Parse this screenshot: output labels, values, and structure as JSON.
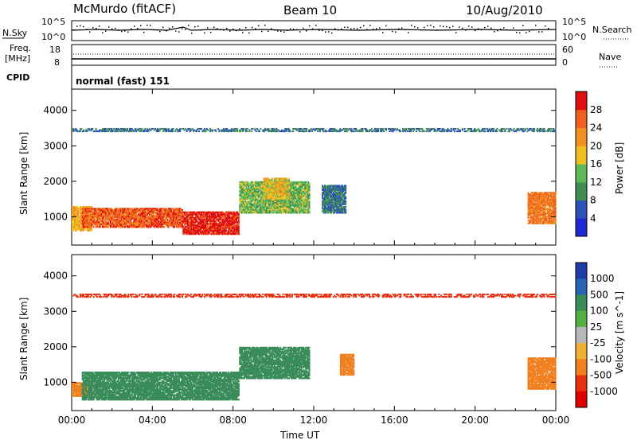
{
  "header": {
    "title": "McMurdo (fitACF)",
    "beam": "Beam 10",
    "date": "10/Aug/2010"
  },
  "top_panels": {
    "nsky_label": "N.Sky",
    "nsky_scale": [
      "10^5",
      "10^0"
    ],
    "nsearch_label": "N.Search",
    "nsearch_scale": [
      "10^5",
      "10^0"
    ],
    "freq_label": "Freq.",
    "freq_unit": "[MHz]",
    "freq_ticks": [
      "18",
      "8"
    ],
    "nave_label": "Nave",
    "nave_ticks": [
      "60",
      "0"
    ],
    "cpid_label": "CPID",
    "cpid_value": "normal (fast) 151"
  },
  "colors": {
    "power_scale": [
      "#1e28d2",
      "#2c52b8",
      "#3e8f50",
      "#5fb85a",
      "#f0c020",
      "#f09020",
      "#f06020",
      "#e01010"
    ],
    "velocity_scale": [
      "#1e3ca8",
      "#2a64b8",
      "#3a8c5a",
      "#56b040",
      "#b8b8b8",
      "#f0b030",
      "#f08020",
      "#e83010",
      "#e00000"
    ]
  },
  "chart_data": [
    {
      "type": "heatmap",
      "name": "power",
      "ylabel": "Slant Range [km]",
      "xlabel": "Time UT",
      "xticks": [
        "00:00",
        "04:00",
        "08:00",
        "12:00",
        "16:00",
        "20:00",
        "00:00"
      ],
      "yticks": [
        "1000",
        "2000",
        "3000",
        "4000"
      ],
      "ylim": [
        200,
        4600
      ],
      "xlim_hours": [
        0,
        24
      ],
      "colorbar_label": "Power [dB]",
      "colorbar_ticks": [
        "4",
        "8",
        "12",
        "16",
        "20",
        "24",
        "28"
      ],
      "colorbar_range": [
        0,
        32
      ],
      "regions": [
        {
          "t0": 0.0,
          "t1": 1.0,
          "r0": 600,
          "r1": 1300,
          "value": 20
        },
        {
          "t0": 0.5,
          "t1": 5.5,
          "r0": 700,
          "r1": 1250,
          "value": 26
        },
        {
          "t0": 5.5,
          "t1": 8.3,
          "r0": 500,
          "r1": 1150,
          "value": 30
        },
        {
          "t0": 8.3,
          "t1": 11.8,
          "r0": 1100,
          "r1": 2000,
          "value": 14
        },
        {
          "t0": 9.5,
          "t1": 10.8,
          "r0": 1500,
          "r1": 2100,
          "value": 18
        },
        {
          "t0": 12.4,
          "t1": 13.6,
          "r0": 1100,
          "r1": 1900,
          "value": 8
        },
        {
          "t0": 22.6,
          "t1": 24.0,
          "r0": 800,
          "r1": 1700,
          "value": 24
        },
        {
          "t0": 0.0,
          "t1": 24.0,
          "r0": 3400,
          "r1": 3500,
          "value": 8
        }
      ]
    },
    {
      "type": "heatmap",
      "name": "velocity",
      "ylabel": "Slant Range [km]",
      "xlabel": "Time UT",
      "xticks": [
        "00:00",
        "04:00",
        "08:00",
        "12:00",
        "16:00",
        "20:00",
        "00:00"
      ],
      "yticks": [
        "1000",
        "2000",
        "3000",
        "4000"
      ],
      "ylim": [
        200,
        4600
      ],
      "xlim_hours": [
        0,
        24
      ],
      "colorbar_label": "Velocity [m s^-1]",
      "colorbar_ticks": [
        "1000",
        "500",
        "100",
        "25",
        "-25",
        "-100",
        "-500",
        "-1000"
      ],
      "regions": [
        {
          "t0": 0.0,
          "t1": 1.0,
          "r0": 600,
          "r1": 1000,
          "value": -200
        },
        {
          "t0": 0.5,
          "t1": 8.3,
          "r0": 500,
          "r1": 1300,
          "value": 200
        },
        {
          "t0": 8.3,
          "t1": 11.8,
          "r0": 1100,
          "r1": 2000,
          "value": 150
        },
        {
          "t0": 13.3,
          "t1": 14.0,
          "r0": 1200,
          "r1": 1800,
          "value": -150
        },
        {
          "t0": 22.6,
          "t1": 24.0,
          "r0": 800,
          "r1": 1700,
          "value": -200
        },
        {
          "t0": 0.0,
          "t1": 24.0,
          "r0": 3400,
          "r1": 3500,
          "value": -600
        }
      ]
    }
  ]
}
